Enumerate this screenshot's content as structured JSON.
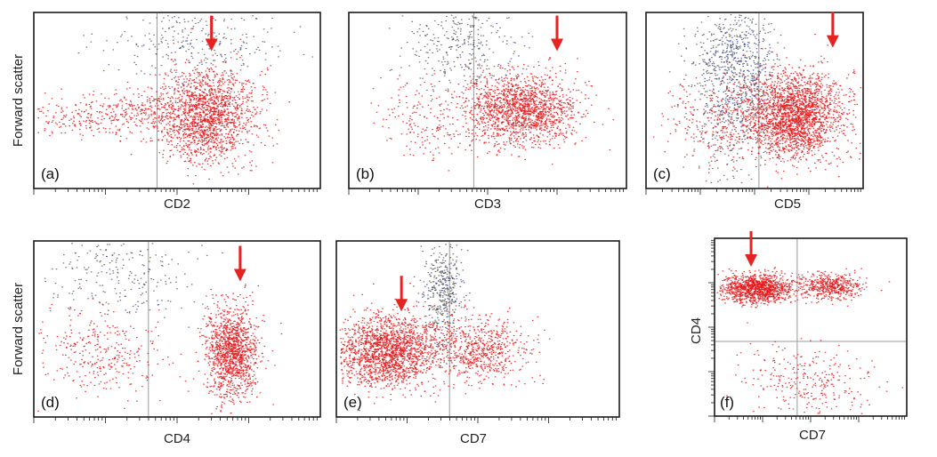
{
  "colors": {
    "target_population": "#e8191b",
    "gray_events": "#4a4a4a",
    "blue_events": "#2b3fa8",
    "arrow": "#e52320",
    "gate_line": "#9a9a9a",
    "frame": "#1a1a1a"
  },
  "chart_data": [
    {
      "type": "scatter",
      "panel_label": "(a)",
      "xlabel": "CD2",
      "ylabel": "Forward scatter",
      "x_scale": "log",
      "y_scale": "linear",
      "legend": "none",
      "gate_x": 0.43,
      "arrow": {
        "x": 0.62,
        "y": 0.78
      },
      "clusters": [
        {
          "name": "target",
          "color": "red",
          "count": 1700,
          "cx": 0.6,
          "cy": 0.42,
          "sx": 0.085,
          "sy": 0.13
        },
        {
          "name": "target-tail",
          "color": "red",
          "count": 240,
          "cx": 0.18,
          "cy": 0.4,
          "sx": 0.12,
          "sy": 0.06
        },
        {
          "name": "target-bridge",
          "color": "red",
          "count": 160,
          "cx": 0.37,
          "cy": 0.45,
          "sx": 0.07,
          "sy": 0.06
        },
        {
          "name": "background",
          "color": "gray",
          "count": 260,
          "cx": 0.57,
          "cy": 0.82,
          "sx": 0.16,
          "sy": 0.13
        },
        {
          "name": "background",
          "color": "blue",
          "count": 45,
          "cx": 0.6,
          "cy": 0.78,
          "sx": 0.14,
          "sy": 0.12
        }
      ]
    },
    {
      "type": "scatter",
      "panel_label": "(b)",
      "xlabel": "CD3",
      "ylabel": "",
      "x_scale": "log",
      "y_scale": "linear",
      "legend": "none",
      "gate_x": 0.45,
      "arrow": {
        "x": 0.75,
        "y": 0.78
      },
      "clusters": [
        {
          "name": "target",
          "color": "red",
          "count": 1600,
          "cx": 0.62,
          "cy": 0.45,
          "sx": 0.1,
          "sy": 0.1
        },
        {
          "name": "target-spread",
          "color": "red",
          "count": 180,
          "cx": 0.28,
          "cy": 0.38,
          "sx": 0.09,
          "sy": 0.12
        },
        {
          "name": "background",
          "color": "gray",
          "count": 300,
          "cx": 0.4,
          "cy": 0.8,
          "sx": 0.1,
          "sy": 0.14
        },
        {
          "name": "background",
          "color": "blue",
          "count": 40,
          "cx": 0.47,
          "cy": 0.78,
          "sx": 0.1,
          "sy": 0.12
        }
      ]
    },
    {
      "type": "scatter",
      "panel_label": "(c)",
      "xlabel": "CD5",
      "ylabel": "",
      "x_scale": "log",
      "y_scale": "linear",
      "legend": "none",
      "gate_x": 0.52,
      "arrow": {
        "x": 0.86,
        "y": 0.8
      },
      "clusters": [
        {
          "name": "target",
          "color": "red",
          "count": 2300,
          "cx": 0.68,
          "cy": 0.42,
          "sx": 0.11,
          "sy": 0.12
        },
        {
          "name": "target-spread",
          "color": "red",
          "count": 250,
          "cx": 0.33,
          "cy": 0.4,
          "sx": 0.12,
          "sy": 0.12
        },
        {
          "name": "background",
          "color": "gray",
          "count": 750,
          "cx": 0.39,
          "cy": 0.62,
          "sx": 0.1,
          "sy": 0.27
        },
        {
          "name": "background",
          "color": "blue",
          "count": 260,
          "cx": 0.42,
          "cy": 0.7,
          "sx": 0.08,
          "sy": 0.17
        }
      ]
    },
    {
      "type": "scatter",
      "panel_label": "(d)",
      "xlabel": "CD4",
      "ylabel": "Forward scatter",
      "x_scale": "log",
      "y_scale": "linear",
      "legend": "none",
      "gate_x": 0.4,
      "arrow": {
        "x": 0.72,
        "y": 0.77
      },
      "clusters": [
        {
          "name": "target",
          "color": "red",
          "count": 1300,
          "cx": 0.69,
          "cy": 0.37,
          "sx": 0.045,
          "sy": 0.13
        },
        {
          "name": "target-negative",
          "color": "red",
          "count": 320,
          "cx": 0.24,
          "cy": 0.37,
          "sx": 0.1,
          "sy": 0.12
        },
        {
          "name": "background",
          "color": "gray",
          "count": 200,
          "cx": 0.28,
          "cy": 0.83,
          "sx": 0.12,
          "sy": 0.11
        },
        {
          "name": "background",
          "color": "blue",
          "count": 40,
          "cx": 0.38,
          "cy": 0.75,
          "sx": 0.12,
          "sy": 0.12
        }
      ]
    },
    {
      "type": "scatter",
      "panel_label": "(e)",
      "xlabel": "CD7",
      "ylabel": "",
      "x_scale": "log",
      "y_scale": "linear",
      "legend": "none",
      "gate_x": 0.4,
      "arrow": {
        "x": 0.23,
        "y": 0.6
      },
      "clusters": [
        {
          "name": "target",
          "color": "red",
          "count": 1900,
          "cx": 0.18,
          "cy": 0.38,
          "sx": 0.09,
          "sy": 0.1
        },
        {
          "name": "target-positive",
          "color": "red",
          "count": 650,
          "cx": 0.51,
          "cy": 0.38,
          "sx": 0.08,
          "sy": 0.09
        },
        {
          "name": "background",
          "color": "gray",
          "count": 380,
          "cx": 0.37,
          "cy": 0.72,
          "sx": 0.035,
          "sy": 0.15
        },
        {
          "name": "background",
          "color": "blue",
          "count": 60,
          "cx": 0.37,
          "cy": 0.7,
          "sx": 0.04,
          "sy": 0.13
        }
      ]
    },
    {
      "type": "scatter",
      "panel_label": "(f)",
      "xlabel": "CD7",
      "ylabel": "CD4",
      "x_scale": "log",
      "y_scale": "log",
      "legend": "none",
      "gate_x": 0.43,
      "gate_y": 0.42,
      "arrow": {
        "x": 0.19,
        "y": 0.84
      },
      "clusters": [
        {
          "name": "CD4+CD7-",
          "color": "red",
          "count": 1200,
          "cx": 0.22,
          "cy": 0.72,
          "sx": 0.09,
          "sy": 0.04
        },
        {
          "name": "CD4+CD7+",
          "color": "red",
          "count": 500,
          "cx": 0.6,
          "cy": 0.73,
          "sx": 0.08,
          "sy": 0.035
        },
        {
          "name": "CD4-",
          "color": "red",
          "count": 280,
          "cx": 0.5,
          "cy": 0.2,
          "sx": 0.17,
          "sy": 0.1
        }
      ]
    }
  ]
}
